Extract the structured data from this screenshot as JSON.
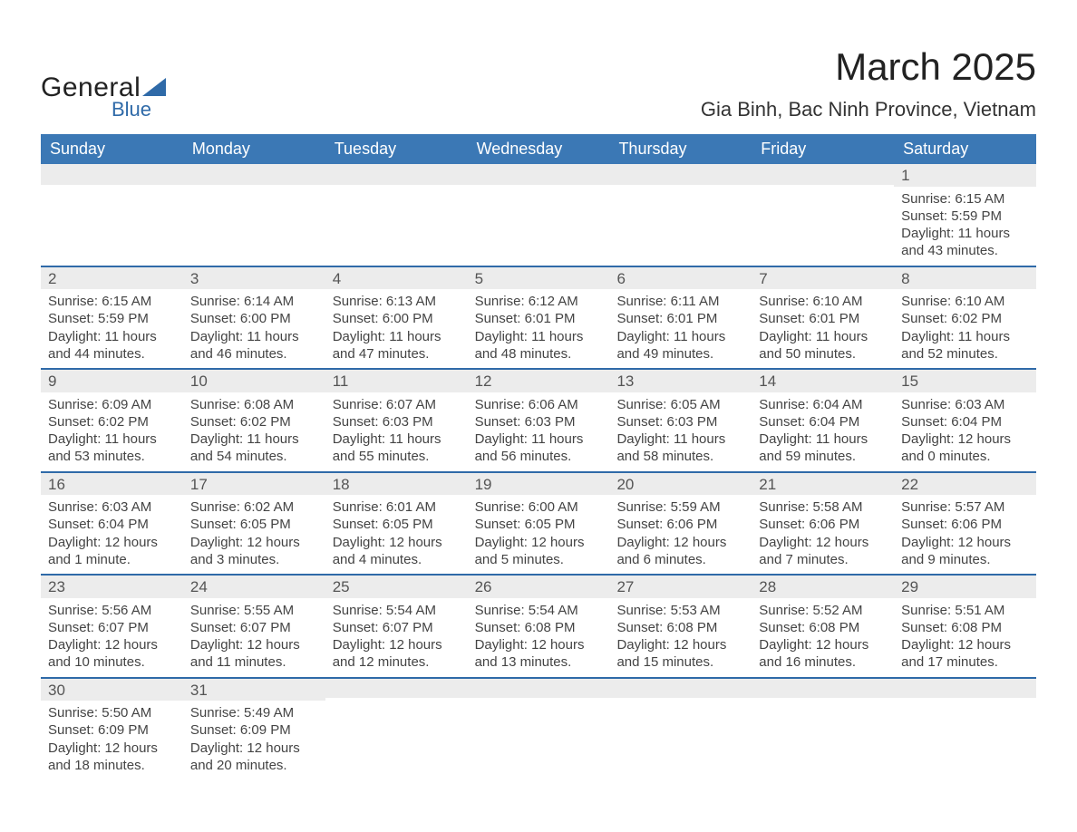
{
  "logo": {
    "top": "General",
    "bottom": "Blue"
  },
  "header": {
    "month_title": "March 2025",
    "location": "Gia Binh, Bac Ninh Province, Vietnam"
  },
  "colors": {
    "header_bg": "#3b78b5",
    "band_bg": "#ececec",
    "band_border": "#2f6aa8",
    "text": "#444444",
    "logo_blue": "#2f6aa8",
    "page_bg": "#ffffff"
  },
  "typography": {
    "month_title_fontsize": 42,
    "location_fontsize": 22,
    "weekday_header_fontsize": 18,
    "daynum_fontsize": 17,
    "cell_fontsize": 15,
    "font_family": "Arial"
  },
  "weekdays": [
    "Sunday",
    "Monday",
    "Tuesday",
    "Wednesday",
    "Thursday",
    "Friday",
    "Saturday"
  ],
  "weeks": [
    [
      null,
      null,
      null,
      null,
      null,
      null,
      {
        "n": "1",
        "sr": "Sunrise: 6:15 AM",
        "ss": "Sunset: 5:59 PM",
        "d1": "Daylight: 11 hours",
        "d2": "and 43 minutes."
      }
    ],
    [
      {
        "n": "2",
        "sr": "Sunrise: 6:15 AM",
        "ss": "Sunset: 5:59 PM",
        "d1": "Daylight: 11 hours",
        "d2": "and 44 minutes."
      },
      {
        "n": "3",
        "sr": "Sunrise: 6:14 AM",
        "ss": "Sunset: 6:00 PM",
        "d1": "Daylight: 11 hours",
        "d2": "and 46 minutes."
      },
      {
        "n": "4",
        "sr": "Sunrise: 6:13 AM",
        "ss": "Sunset: 6:00 PM",
        "d1": "Daylight: 11 hours",
        "d2": "and 47 minutes."
      },
      {
        "n": "5",
        "sr": "Sunrise: 6:12 AM",
        "ss": "Sunset: 6:01 PM",
        "d1": "Daylight: 11 hours",
        "d2": "and 48 minutes."
      },
      {
        "n": "6",
        "sr": "Sunrise: 6:11 AM",
        "ss": "Sunset: 6:01 PM",
        "d1": "Daylight: 11 hours",
        "d2": "and 49 minutes."
      },
      {
        "n": "7",
        "sr": "Sunrise: 6:10 AM",
        "ss": "Sunset: 6:01 PM",
        "d1": "Daylight: 11 hours",
        "d2": "and 50 minutes."
      },
      {
        "n": "8",
        "sr": "Sunrise: 6:10 AM",
        "ss": "Sunset: 6:02 PM",
        "d1": "Daylight: 11 hours",
        "d2": "and 52 minutes."
      }
    ],
    [
      {
        "n": "9",
        "sr": "Sunrise: 6:09 AM",
        "ss": "Sunset: 6:02 PM",
        "d1": "Daylight: 11 hours",
        "d2": "and 53 minutes."
      },
      {
        "n": "10",
        "sr": "Sunrise: 6:08 AM",
        "ss": "Sunset: 6:02 PM",
        "d1": "Daylight: 11 hours",
        "d2": "and 54 minutes."
      },
      {
        "n": "11",
        "sr": "Sunrise: 6:07 AM",
        "ss": "Sunset: 6:03 PM",
        "d1": "Daylight: 11 hours",
        "d2": "and 55 minutes."
      },
      {
        "n": "12",
        "sr": "Sunrise: 6:06 AM",
        "ss": "Sunset: 6:03 PM",
        "d1": "Daylight: 11 hours",
        "d2": "and 56 minutes."
      },
      {
        "n": "13",
        "sr": "Sunrise: 6:05 AM",
        "ss": "Sunset: 6:03 PM",
        "d1": "Daylight: 11 hours",
        "d2": "and 58 minutes."
      },
      {
        "n": "14",
        "sr": "Sunrise: 6:04 AM",
        "ss": "Sunset: 6:04 PM",
        "d1": "Daylight: 11 hours",
        "d2": "and 59 minutes."
      },
      {
        "n": "15",
        "sr": "Sunrise: 6:03 AM",
        "ss": "Sunset: 6:04 PM",
        "d1": "Daylight: 12 hours",
        "d2": "and 0 minutes."
      }
    ],
    [
      {
        "n": "16",
        "sr": "Sunrise: 6:03 AM",
        "ss": "Sunset: 6:04 PM",
        "d1": "Daylight: 12 hours",
        "d2": "and 1 minute."
      },
      {
        "n": "17",
        "sr": "Sunrise: 6:02 AM",
        "ss": "Sunset: 6:05 PM",
        "d1": "Daylight: 12 hours",
        "d2": "and 3 minutes."
      },
      {
        "n": "18",
        "sr": "Sunrise: 6:01 AM",
        "ss": "Sunset: 6:05 PM",
        "d1": "Daylight: 12 hours",
        "d2": "and 4 minutes."
      },
      {
        "n": "19",
        "sr": "Sunrise: 6:00 AM",
        "ss": "Sunset: 6:05 PM",
        "d1": "Daylight: 12 hours",
        "d2": "and 5 minutes."
      },
      {
        "n": "20",
        "sr": "Sunrise: 5:59 AM",
        "ss": "Sunset: 6:06 PM",
        "d1": "Daylight: 12 hours",
        "d2": "and 6 minutes."
      },
      {
        "n": "21",
        "sr": "Sunrise: 5:58 AM",
        "ss": "Sunset: 6:06 PM",
        "d1": "Daylight: 12 hours",
        "d2": "and 7 minutes."
      },
      {
        "n": "22",
        "sr": "Sunrise: 5:57 AM",
        "ss": "Sunset: 6:06 PM",
        "d1": "Daylight: 12 hours",
        "d2": "and 9 minutes."
      }
    ],
    [
      {
        "n": "23",
        "sr": "Sunrise: 5:56 AM",
        "ss": "Sunset: 6:07 PM",
        "d1": "Daylight: 12 hours",
        "d2": "and 10 minutes."
      },
      {
        "n": "24",
        "sr": "Sunrise: 5:55 AM",
        "ss": "Sunset: 6:07 PM",
        "d1": "Daylight: 12 hours",
        "d2": "and 11 minutes."
      },
      {
        "n": "25",
        "sr": "Sunrise: 5:54 AM",
        "ss": "Sunset: 6:07 PM",
        "d1": "Daylight: 12 hours",
        "d2": "and 12 minutes."
      },
      {
        "n": "26",
        "sr": "Sunrise: 5:54 AM",
        "ss": "Sunset: 6:08 PM",
        "d1": "Daylight: 12 hours",
        "d2": "and 13 minutes."
      },
      {
        "n": "27",
        "sr": "Sunrise: 5:53 AM",
        "ss": "Sunset: 6:08 PM",
        "d1": "Daylight: 12 hours",
        "d2": "and 15 minutes."
      },
      {
        "n": "28",
        "sr": "Sunrise: 5:52 AM",
        "ss": "Sunset: 6:08 PM",
        "d1": "Daylight: 12 hours",
        "d2": "and 16 minutes."
      },
      {
        "n": "29",
        "sr": "Sunrise: 5:51 AM",
        "ss": "Sunset: 6:08 PM",
        "d1": "Daylight: 12 hours",
        "d2": "and 17 minutes."
      }
    ],
    [
      {
        "n": "30",
        "sr": "Sunrise: 5:50 AM",
        "ss": "Sunset: 6:09 PM",
        "d1": "Daylight: 12 hours",
        "d2": "and 18 minutes."
      },
      {
        "n": "31",
        "sr": "Sunrise: 5:49 AM",
        "ss": "Sunset: 6:09 PM",
        "d1": "Daylight: 12 hours",
        "d2": "and 20 minutes."
      },
      null,
      null,
      null,
      null,
      null
    ]
  ]
}
